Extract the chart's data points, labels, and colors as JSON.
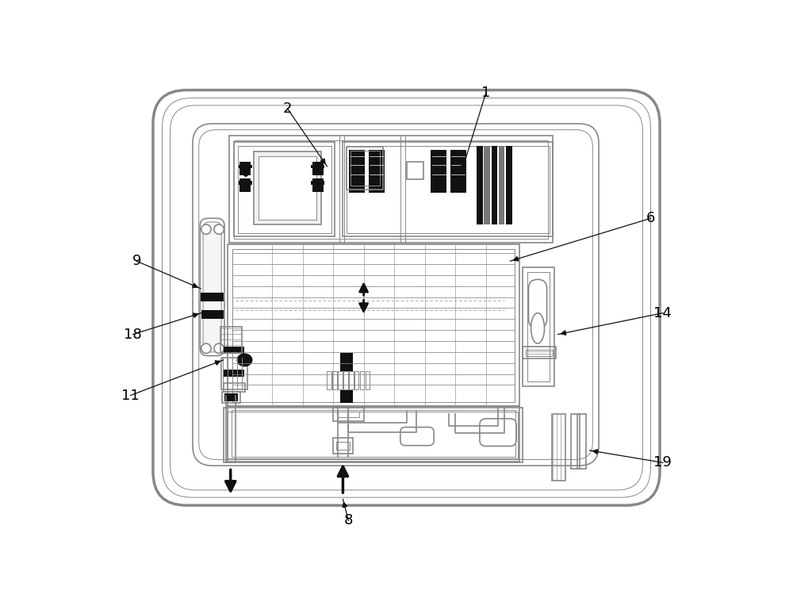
{
  "bg_color": "#ffffff",
  "lc": "#888888",
  "dc": "#111111",
  "lw1": 2.0,
  "lw2": 1.2,
  "lw3": 0.7,
  "fig_w": 10.0,
  "fig_h": 7.54
}
